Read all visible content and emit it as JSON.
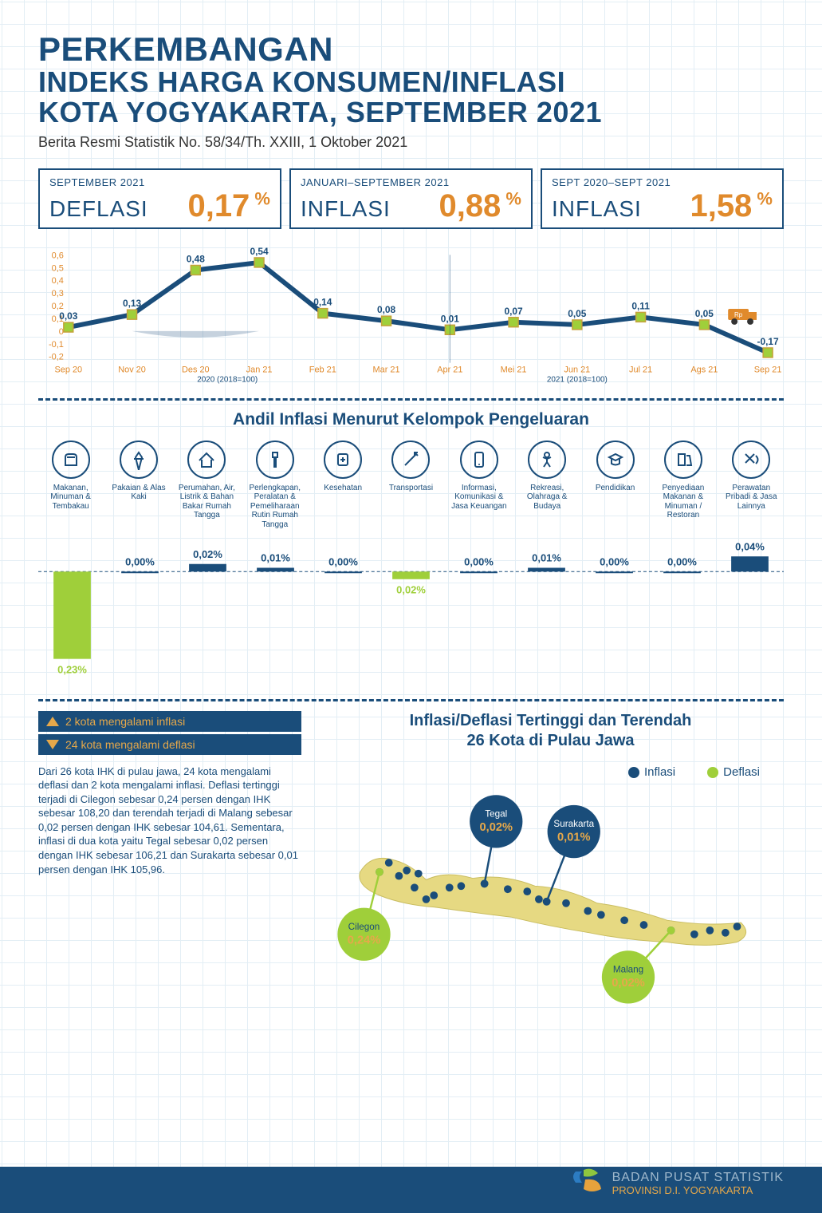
{
  "header": {
    "line1": "PERKEMBANGAN",
    "line2": "INDEKS HARGA KONSUMEN/INFLASI",
    "line3": "KOTA YOGYAKARTA, SEPTEMBER 2021",
    "subtitle": "Berita Resmi Statistik No. 58/34/Th. XXIII, 1 Oktober 2021",
    "title_color": "#1a4d7a"
  },
  "stats": [
    {
      "period": "SEPTEMBER 2021",
      "label": "DEFLASI",
      "value": "0,17",
      "value_color": "#e08a2c"
    },
    {
      "period": "JANUARI–SEPTEMBER 2021",
      "label": "INFLASI",
      "value": "0,88",
      "value_color": "#e08a2c"
    },
    {
      "period": "SEPT 2020–SEPT 2021",
      "label": "INFLASI",
      "value": "1,58",
      "value_color": "#e08a2c"
    }
  ],
  "linechart": {
    "yticks": [
      "0,6",
      "0,5",
      "0,4",
      "0,3",
      "0,2",
      "0,1",
      "0",
      "-0,1",
      "-0,2"
    ],
    "ymin": -0.2,
    "ymax": 0.6,
    "categories": [
      "Sep 20",
      "Nov 20",
      "Des 20",
      "Jan 21",
      "Feb 21",
      "Mar 21",
      "Apr 21",
      "Mei 21",
      "Jun 21",
      "Jul 21",
      "Ags 21",
      "Sep 21"
    ],
    "values": [
      0.03,
      0.13,
      0.48,
      0.54,
      0.14,
      0.08,
      0.01,
      0.07,
      0.05,
      0.11,
      0.05,
      -0.17
    ],
    "labels": [
      "0,03",
      "0,13",
      "0,48",
      "0,54",
      "0,14",
      "0,08",
      "0,01",
      "0,07",
      "0,05",
      "0,11",
      "0,05",
      "-0,17"
    ],
    "line_color": "#1a4d7a",
    "marker_color": "#9fcf3a",
    "marker_stroke": "#c5a23a",
    "base2020_note": "2020 (2018=100)",
    "base2021_note": "2021 (2018=100)"
  },
  "groups_section": {
    "title": "Andil Inflasi Menurut Kelompok Pengeluaran",
    "items": [
      {
        "name": "Makanan, Minuman & Tembakau",
        "value": -0.23,
        "value_s": "0,23%",
        "color": "#9fcf3a"
      },
      {
        "name": "Pakaian & Alas Kaki",
        "value": 0.0,
        "value_s": "0,00%",
        "color": "#1a4d7a"
      },
      {
        "name": "Perumahan, Air, Listrik & Bahan Bakar Rumah Tangga",
        "value": 0.02,
        "value_s": "0,02%",
        "color": "#1a4d7a"
      },
      {
        "name": "Perlengkapan, Peralatan & Pemeliharaan Rutin Rumah Tangga",
        "value": 0.01,
        "value_s": "0,01%",
        "color": "#1a4d7a"
      },
      {
        "name": "Kesehatan",
        "value": 0.0,
        "value_s": "0,00%",
        "color": "#1a4d7a"
      },
      {
        "name": "Transportasi",
        "value": -0.02,
        "value_s": "0,02%",
        "color": "#9fcf3a"
      },
      {
        "name": "Informasi, Komunikasi & Jasa Keuangan",
        "value": 0.0,
        "value_s": "0,00%",
        "color": "#1a4d7a"
      },
      {
        "name": "Rekreasi, Olahraga & Budaya",
        "value": 0.01,
        "value_s": "0,01%",
        "color": "#1a4d7a"
      },
      {
        "name": "Pendidikan",
        "value": 0.0,
        "value_s": "0,00%",
        "color": "#1a4d7a"
      },
      {
        "name": "Penyediaan Makanan & Minuman / Restoran",
        "value": 0.0,
        "value_s": "0,00%",
        "color": "#1a4d7a"
      },
      {
        "name": "Perawatan Pribadi & Jasa Lainnya",
        "value": 0.04,
        "value_s": "0,04%",
        "color": "#1a4d7a"
      }
    ],
    "baseline_note": ""
  },
  "java": {
    "title_l1": "Inflasi/Deflasi Tertinggi dan Terendah",
    "title_l2": "26 Kota di Pulau Jawa",
    "legend_up": "2 kota mengalami inflasi",
    "legend_down": "24 kota mengalami deflasi",
    "desc": "Dari 26 kota IHK di pulau jawa, 24 kota mengalami deflasi dan 2 kota mengalami inflasi. Deflasi tertinggi terjadi di Cilegon sebesar 0,24 persen dengan IHK sebesar 108,20 dan terendah terjadi di Malang sebesar 0,02 persen dengan IHK sebesar 104,61. Sementara, inflasi di dua kota yaitu Tegal sebesar 0,02 persen dengan IHK sebesar 106,21 dan Surakarta sebesar 0,01 persen dengan IHK 105,96.",
    "legend_inflasi": "Inflasi",
    "legend_deflasi": "Deflasi",
    "inflasi_color": "#1a4d7a",
    "deflasi_color": "#9fcf3a",
    "callouts": [
      {
        "city": "Tegal",
        "value": "0,02%",
        "type": "inflasi"
      },
      {
        "city": "Surakarta",
        "value": "0,01%",
        "type": "inflasi"
      },
      {
        "city": "Cilegon",
        "value": "0,24%",
        "type": "deflasi"
      },
      {
        "city": "Malang",
        "value": "0,02%",
        "type": "deflasi"
      }
    ],
    "city_dots": [
      [
        80,
        110
      ],
      [
        92,
        98
      ],
      [
        105,
        115
      ],
      [
        115,
        108
      ],
      [
        130,
        112
      ],
      [
        125,
        130
      ],
      [
        140,
        145
      ],
      [
        150,
        140
      ],
      [
        170,
        130
      ],
      [
        185,
        128
      ],
      [
        215,
        125
      ],
      [
        245,
        132
      ],
      [
        270,
        135
      ],
      [
        285,
        145
      ],
      [
        295,
        148
      ],
      [
        320,
        150
      ],
      [
        348,
        160
      ],
      [
        365,
        165
      ],
      [
        395,
        172
      ],
      [
        420,
        178
      ],
      [
        455,
        185
      ],
      [
        485,
        190
      ],
      [
        505,
        185
      ],
      [
        525,
        188
      ],
      [
        540,
        180
      ]
    ],
    "map_color": "#e6d982"
  },
  "footer": {
    "org_l1": "BADAN PUSAT STATISTIK",
    "org_l2": "PROVINSI D.I. YOGYAKARTA",
    "bar_color": "#1a4d7a"
  }
}
